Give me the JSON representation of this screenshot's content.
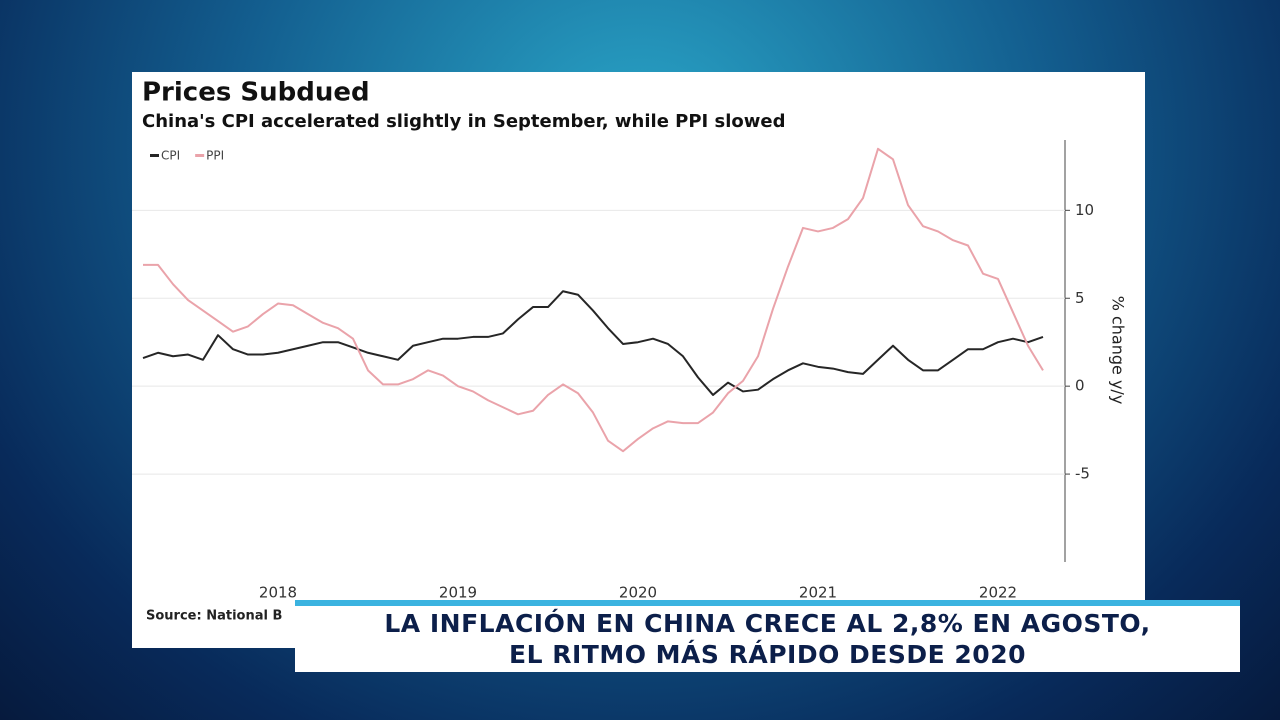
{
  "chart_data": {
    "type": "line",
    "title": "Prices Subdued",
    "subtitle": "China's CPI accelerated slightly in September, while PPI slowed",
    "y_label": "% change y/y",
    "source": "Source: National B",
    "categories": [
      null,
      null,
      null,
      null,
      null,
      null,
      null,
      null,
      null,
      "2018",
      null,
      null,
      null,
      null,
      null,
      null,
      null,
      null,
      null,
      null,
      null,
      "2019",
      null,
      null,
      null,
      null,
      null,
      null,
      null,
      null,
      null,
      null,
      null,
      "2020",
      null,
      null,
      null,
      null,
      null,
      null,
      null,
      null,
      null,
      null,
      null,
      "2021",
      null,
      null,
      null,
      null,
      null,
      null,
      null,
      null,
      null,
      null,
      null,
      "2022",
      null,
      null,
      null
    ],
    "series": [
      {
        "name": "CPI",
        "color": "#262626",
        "values": [
          1.6,
          1.9,
          1.7,
          1.8,
          1.5,
          2.9,
          2.1,
          1.8,
          1.8,
          1.9,
          2.1,
          2.3,
          2.5,
          2.5,
          2.2,
          1.9,
          1.7,
          1.5,
          2.3,
          2.5,
          2.7,
          2.7,
          2.8,
          2.8,
          3.0,
          3.8,
          4.5,
          4.5,
          5.4,
          5.2,
          4.3,
          3.3,
          2.4,
          2.5,
          2.7,
          2.4,
          1.7,
          0.5,
          -0.5,
          0.2,
          -0.3,
          -0.2,
          0.4,
          0.9,
          1.3,
          1.1,
          1.0,
          0.8,
          0.7,
          1.5,
          2.3,
          1.5,
          0.9,
          0.9,
          1.5,
          2.1,
          2.1,
          2.5,
          2.7,
          2.5,
          2.8
        ]
      },
      {
        "name": "PPI",
        "color": "#eaa3aa",
        "values": [
          6.9,
          6.9,
          5.8,
          4.9,
          4.3,
          3.7,
          3.1,
          3.4,
          4.1,
          4.7,
          4.6,
          4.1,
          3.6,
          3.3,
          2.7,
          0.9,
          0.1,
          0.1,
          0.4,
          0.9,
          0.6,
          0.0,
          -0.3,
          -0.8,
          -1.2,
          -1.6,
          -1.4,
          -0.5,
          0.1,
          -0.4,
          -1.5,
          -3.1,
          -3.7,
          -3.0,
          -2.4,
          -2.0,
          -2.1,
          -2.1,
          -1.5,
          -0.4,
          0.3,
          1.7,
          4.4,
          6.8,
          9.0,
          8.8,
          9.0,
          9.5,
          10.7,
          13.5,
          12.9,
          10.3,
          9.1,
          8.8,
          8.3,
          8.0,
          6.4,
          6.1,
          4.2,
          2.3,
          0.9
        ]
      }
    ],
    "ylim": [
      -10,
      14
    ],
    "yticks": [
      -5,
      0,
      5,
      10
    ],
    "grid": true,
    "legend": "top-left"
  },
  "banner": {
    "lines": [
      "LA INFLACIÓN EN CHINA CRECE AL 2,8% EN AGOSTO,",
      "EL RITMO MÁS RÁPIDO DESDE 2020"
    ]
  }
}
